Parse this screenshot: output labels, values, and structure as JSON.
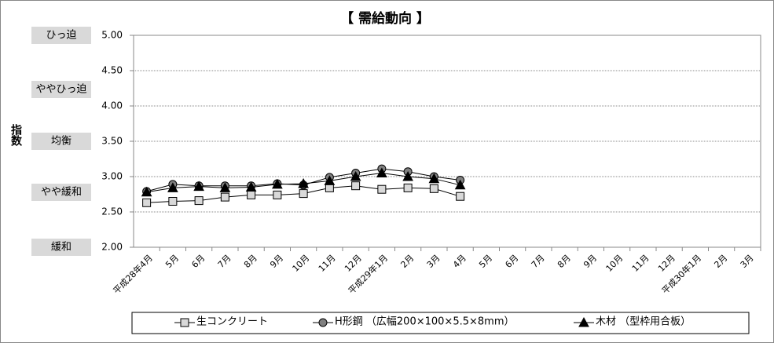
{
  "chart_data": {
    "type": "line",
    "title": "【 需給動向 】",
    "y_axis_label": "指数",
    "level_labels": [
      "ひっ迫",
      "ややひっ迫",
      "均衡",
      "やや緩和",
      "緩和"
    ],
    "categories": [
      "平成28年4月",
      "5月",
      "6月",
      "7月",
      "8月",
      "9月",
      "10月",
      "11月",
      "12月",
      "平成29年1月",
      "2月",
      "3月",
      "4月",
      "5月",
      "6月",
      "7月",
      "8月",
      "9月",
      "10月",
      "11月",
      "12月",
      "平成30年1月",
      "2月",
      "3月"
    ],
    "series": [
      {
        "name": "生コンクリート",
        "color": "#d9d9d9",
        "marker": "square",
        "values": [
          2.63,
          2.65,
          2.66,
          2.71,
          2.74,
          2.74,
          2.76,
          2.84,
          2.87,
          2.82,
          2.84,
          2.83,
          2.72,
          null,
          null,
          null,
          null,
          null,
          null,
          null,
          null,
          null,
          null,
          null
        ]
      },
      {
        "name": "H形鋼 （広幅200×100×5.5×8mm）",
        "color": "#808080",
        "marker": "circle",
        "values": [
          2.79,
          2.89,
          2.87,
          2.87,
          2.87,
          2.9,
          2.88,
          2.99,
          3.05,
          3.11,
          3.07,
          3.0,
          2.95,
          null,
          null,
          null,
          null,
          null,
          null,
          null,
          null,
          null,
          null,
          null
        ]
      },
      {
        "name": "木材 （型枠用合板）",
        "color": "#000000",
        "marker": "triangle",
        "values": [
          2.78,
          2.84,
          2.86,
          2.84,
          2.85,
          2.89,
          2.9,
          2.94,
          3.0,
          3.05,
          3.0,
          2.97,
          2.88,
          null,
          null,
          null,
          null,
          null,
          null,
          null,
          null,
          null,
          null,
          null
        ]
      }
    ],
    "ylim": [
      2.0,
      5.0
    ],
    "yticks": [
      {
        "value": 2.0,
        "label": "2.00"
      },
      {
        "value": 2.5,
        "label": "2.50"
      },
      {
        "value": 3.0,
        "label": "3.00"
      },
      {
        "value": 3.5,
        "label": "3.50"
      },
      {
        "value": 4.0,
        "label": "4.00"
      },
      {
        "value": 4.5,
        "label": "4.50"
      },
      {
        "value": 5.0,
        "label": "5.00"
      }
    ],
    "grid": true
  }
}
